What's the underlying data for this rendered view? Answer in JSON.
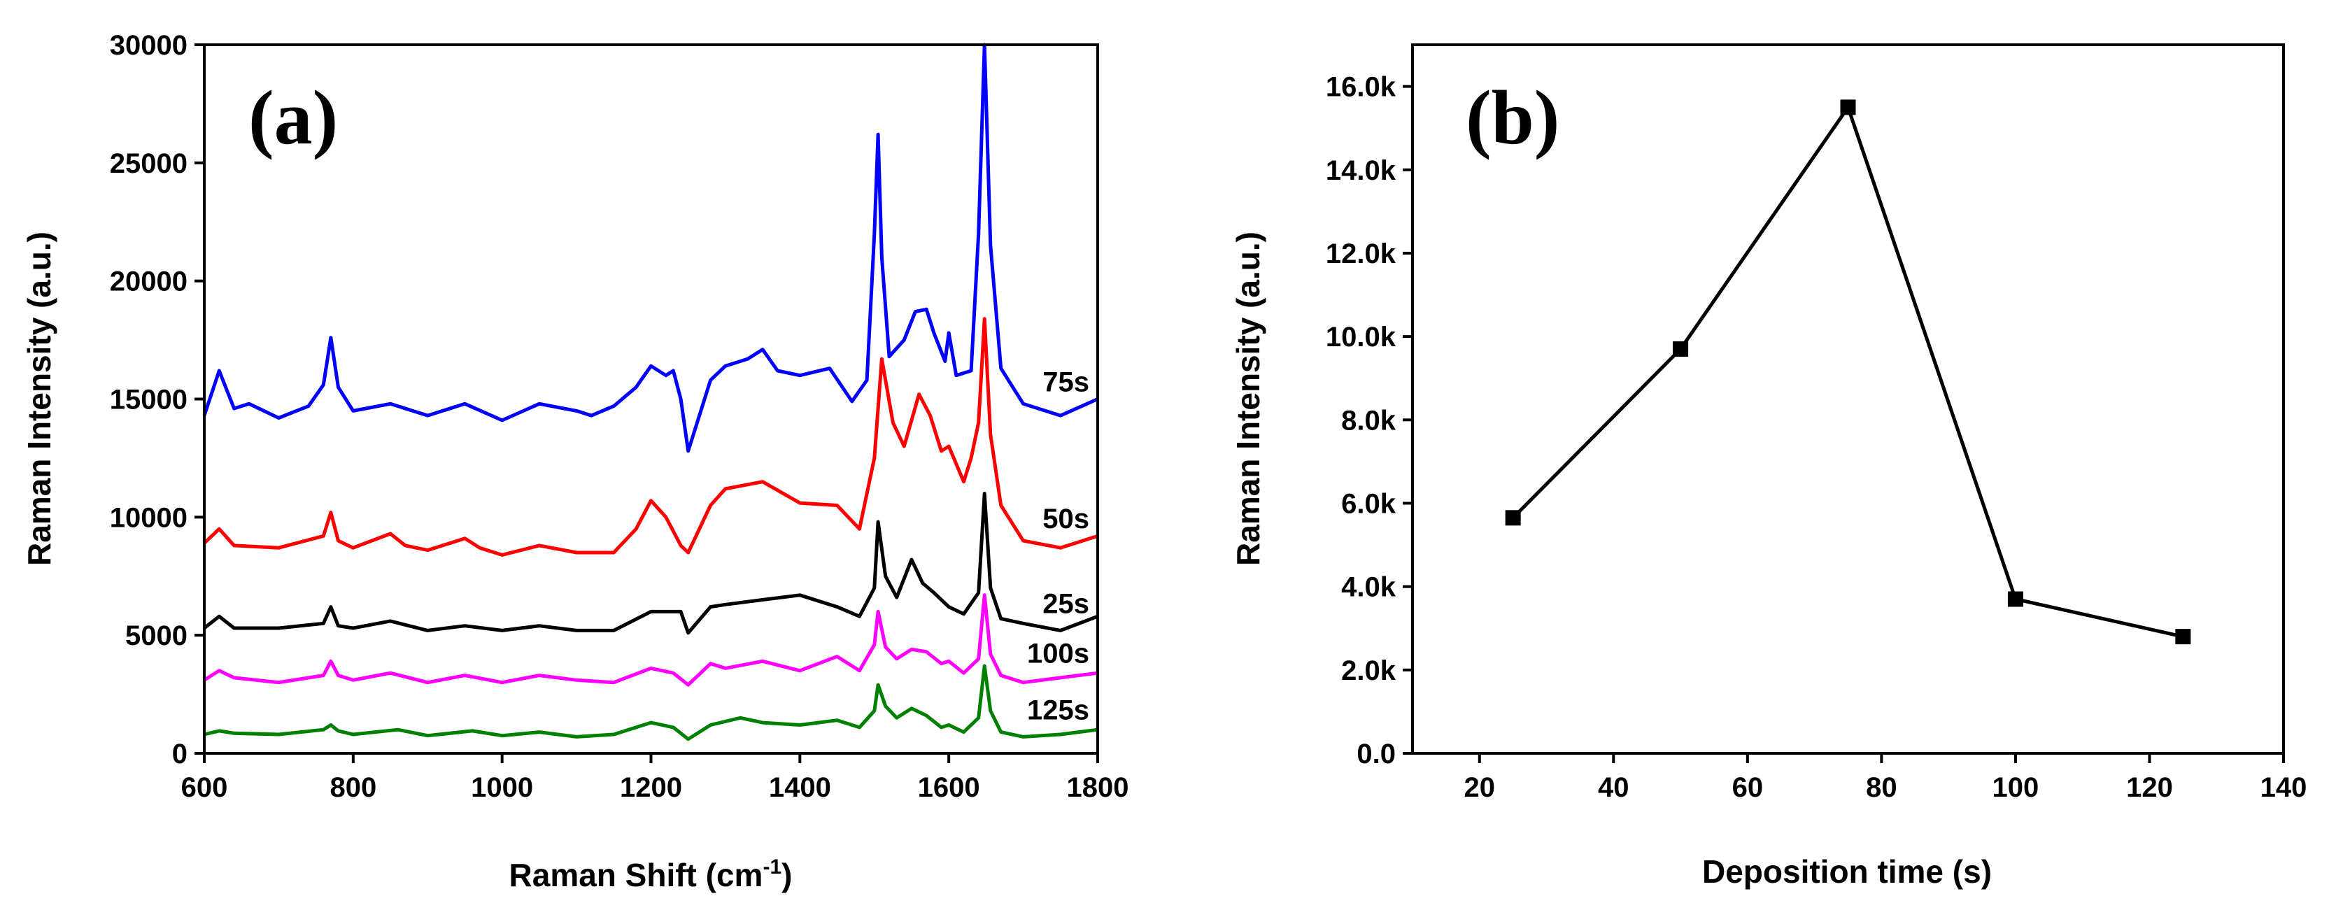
{
  "chart_data": [
    {
      "panel": "(a)",
      "type": "line",
      "xlabel": "Raman Shift (cm",
      "xlabel_sup": "-1",
      "xlabel_end": ")",
      "ylabel": "Raman Intensity (a.u.)",
      "xlim": [
        600,
        1800
      ],
      "ylim": [
        0,
        30000
      ],
      "xticks": [
        600,
        800,
        1000,
        1200,
        1400,
        1600,
        1800
      ],
      "xtick_labels": [
        "600",
        "800",
        "1000",
        "1200",
        "1400",
        "1600",
        "1800"
      ],
      "yticks": [
        0,
        5000,
        10000,
        15000,
        20000,
        25000,
        30000
      ],
      "ytick_labels": [
        "0",
        "5000",
        "10000",
        "15000",
        "20000",
        "25000",
        "30000"
      ],
      "series": [
        {
          "name": "75s",
          "label": "75s",
          "color": "#0000ff",
          "baseline": 14800,
          "x": [
            600,
            620,
            640,
            660,
            700,
            740,
            760,
            770,
            780,
            800,
            850,
            900,
            950,
            1000,
            1050,
            1100,
            1120,
            1150,
            1180,
            1200,
            1220,
            1230,
            1240,
            1250,
            1280,
            1300,
            1330,
            1350,
            1370,
            1400,
            1440,
            1470,
            1490,
            1500,
            1505,
            1510,
            1520,
            1540,
            1555,
            1570,
            1580,
            1595,
            1600,
            1610,
            1630,
            1640,
            1648,
            1656,
            1670,
            1700,
            1750,
            1800
          ],
          "y": [
            14300,
            16200,
            14600,
            14800,
            14200,
            14700,
            15600,
            17600,
            15500,
            14500,
            14800,
            14300,
            14800,
            14100,
            14800,
            14500,
            14300,
            14700,
            15500,
            16400,
            16000,
            16200,
            15000,
            12800,
            15800,
            16400,
            16700,
            17100,
            16200,
            16000,
            16300,
            14900,
            15800,
            22000,
            26200,
            21000,
            16800,
            17500,
            18700,
            18800,
            17800,
            16600,
            17800,
            16000,
            16200,
            22000,
            30000,
            21500,
            16300,
            14800,
            14300,
            15000
          ]
        },
        {
          "name": "50s",
          "label": "50s",
          "color": "#ff0000",
          "baseline": 9000,
          "x": [
            600,
            620,
            640,
            700,
            760,
            770,
            780,
            800,
            850,
            870,
            900,
            950,
            970,
            1000,
            1050,
            1100,
            1150,
            1180,
            1200,
            1220,
            1240,
            1250,
            1280,
            1300,
            1350,
            1400,
            1450,
            1480,
            1500,
            1510,
            1525,
            1540,
            1560,
            1575,
            1590,
            1600,
            1620,
            1630,
            1640,
            1648,
            1656,
            1670,
            1700,
            1750,
            1800
          ],
          "y": [
            8900,
            9500,
            8800,
            8700,
            9200,
            10200,
            9000,
            8700,
            9300,
            8800,
            8600,
            9100,
            8700,
            8400,
            8800,
            8500,
            8500,
            9500,
            10700,
            10000,
            8800,
            8500,
            10500,
            11200,
            11500,
            10600,
            10500,
            9500,
            12500,
            16700,
            14000,
            13000,
            15200,
            14300,
            12800,
            13000,
            11500,
            12500,
            14000,
            18400,
            13500,
            10500,
            9000,
            8700,
            9200
          ]
        },
        {
          "name": "25s",
          "label": "25s",
          "color": "#000000",
          "baseline": 5400,
          "x": [
            600,
            620,
            640,
            700,
            760,
            770,
            780,
            800,
            850,
            900,
            950,
            1000,
            1050,
            1100,
            1150,
            1200,
            1230,
            1240,
            1250,
            1280,
            1300,
            1350,
            1400,
            1450,
            1480,
            1500,
            1505,
            1515,
            1530,
            1550,
            1565,
            1580,
            1600,
            1620,
            1640,
            1648,
            1656,
            1670,
            1700,
            1750,
            1800
          ],
          "y": [
            5300,
            5800,
            5300,
            5300,
            5500,
            6200,
            5400,
            5300,
            5600,
            5200,
            5400,
            5200,
            5400,
            5200,
            5200,
            6000,
            6000,
            6000,
            5100,
            6200,
            6300,
            6500,
            6700,
            6200,
            5800,
            7000,
            9800,
            7500,
            6600,
            8200,
            7200,
            6800,
            6200,
            5900,
            6800,
            11000,
            7000,
            5700,
            5500,
            5200,
            5800
          ]
        },
        {
          "name": "100s",
          "label": "100s",
          "color": "#ff00ff",
          "baseline": 3300,
          "x": [
            600,
            620,
            640,
            700,
            760,
            770,
            780,
            800,
            850,
            900,
            950,
            1000,
            1050,
            1100,
            1150,
            1200,
            1230,
            1250,
            1280,
            1300,
            1350,
            1400,
            1450,
            1480,
            1500,
            1505,
            1515,
            1530,
            1550,
            1570,
            1590,
            1600,
            1620,
            1640,
            1648,
            1656,
            1670,
            1700,
            1750,
            1800
          ],
          "y": [
            3100,
            3500,
            3200,
            3000,
            3300,
            3900,
            3300,
            3100,
            3400,
            3000,
            3300,
            3000,
            3300,
            3100,
            3000,
            3600,
            3400,
            2900,
            3800,
            3600,
            3900,
            3500,
            4100,
            3500,
            4600,
            6000,
            4500,
            4000,
            4400,
            4300,
            3800,
            3900,
            3400,
            4000,
            6700,
            4200,
            3300,
            3000,
            3200,
            3400
          ]
        },
        {
          "name": "125s",
          "label": "125s",
          "color": "#008000",
          "baseline": 900,
          "x": [
            600,
            620,
            640,
            700,
            760,
            770,
            780,
            800,
            860,
            900,
            960,
            1000,
            1050,
            1100,
            1150,
            1200,
            1230,
            1250,
            1280,
            1320,
            1350,
            1400,
            1450,
            1480,
            1500,
            1505,
            1515,
            1530,
            1550,
            1570,
            1590,
            1600,
            1620,
            1640,
            1648,
            1656,
            1670,
            1700,
            1750,
            1800
          ],
          "y": [
            800,
            950,
            850,
            800,
            1000,
            1200,
            950,
            800,
            1000,
            750,
            950,
            750,
            900,
            700,
            800,
            1300,
            1100,
            600,
            1200,
            1500,
            1300,
            1200,
            1400,
            1100,
            1800,
            2900,
            2000,
            1500,
            1900,
            1600,
            1100,
            1200,
            900,
            1500,
            3700,
            1800,
            900,
            700,
            800,
            1000
          ]
        }
      ]
    },
    {
      "panel": "(b)",
      "type": "line",
      "xlabel": "Deposition time (s)",
      "ylabel": "Raman Intensity (a.u.)",
      "xlim": [
        10,
        140
      ],
      "ylim": [
        0,
        17000
      ],
      "xticks": [
        20,
        40,
        60,
        80,
        100,
        120,
        140
      ],
      "xtick_labels": [
        "20",
        "40",
        "60",
        "80",
        "100",
        "120",
        "140"
      ],
      "yticks": [
        0,
        2000,
        4000,
        6000,
        8000,
        10000,
        12000,
        14000,
        16000
      ],
      "ytick_labels": [
        "0.0",
        "2.0k",
        "4.0k",
        "6.0k",
        "8.0k",
        "10.0k",
        "12.0k",
        "14.0k",
        "16.0k"
      ],
      "series": [
        {
          "name": "Raman intensity",
          "color": "#000000",
          "x": [
            25,
            50,
            75,
            100,
            125
          ],
          "y": [
            5650,
            9700,
            15500,
            3700,
            2800
          ]
        }
      ]
    }
  ]
}
